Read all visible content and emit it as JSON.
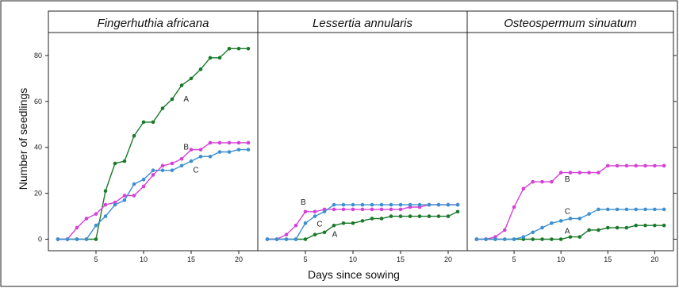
{
  "chart_data": {
    "type": "line",
    "xlabel": "Days since sowing",
    "ylabel": "Number of seedlings",
    "xlim": [
      0,
      22
    ],
    "ylim": [
      -5,
      90
    ],
    "x_ticks": [
      5,
      10,
      15,
      20
    ],
    "y_ticks": [
      0,
      20,
      40,
      60,
      80
    ],
    "grid": false,
    "legend": "none (series labelled A, B, C directly on the lines)",
    "colors": {
      "A": "#1a7a2a",
      "B": "#d640d6",
      "C": "#3d8fd0"
    },
    "panels": [
      {
        "title": "Fingerhuthia africana",
        "series": [
          {
            "name": "A",
            "x": [
              1,
              2,
              3,
              4,
              5,
              6,
              7,
              8,
              9,
              10,
              11,
              12,
              13,
              14,
              15,
              16,
              17,
              18,
              19,
              20,
              21
            ],
            "y": [
              0,
              0,
              0,
              0,
              0,
              21,
              33,
              34,
              45,
              51,
              51,
              57,
              61,
              67,
              70,
              74,
              79,
              79,
              83,
              83,
              83
            ]
          },
          {
            "name": "B",
            "x": [
              1,
              2,
              3,
              4,
              5,
              6,
              7,
              8,
              9,
              10,
              11,
              12,
              13,
              14,
              15,
              16,
              17,
              18,
              19,
              20,
              21
            ],
            "y": [
              0,
              0,
              5,
              9,
              11,
              15,
              16,
              19,
              19,
              23,
              28,
              32,
              33,
              35,
              39,
              39,
              42,
              42,
              42,
              42,
              42
            ]
          },
          {
            "name": "C",
            "x": [
              1,
              2,
              3,
              4,
              5,
              6,
              7,
              8,
              9,
              10,
              11,
              12,
              13,
              14,
              15,
              16,
              17,
              18,
              19,
              20,
              21
            ],
            "y": [
              0,
              0,
              0,
              0,
              6,
              10,
              15,
              17,
              24,
              26,
              30,
              30,
              30,
              32,
              34,
              36,
              36,
              38,
              38,
              39,
              39
            ]
          }
        ],
        "labels": [
          {
            "text": "A",
            "x": 14.2,
            "y": 60
          },
          {
            "text": "B",
            "x": 14.2,
            "y": 39
          },
          {
            "text": "C",
            "x": 15.2,
            "y": 29
          }
        ]
      },
      {
        "title": "Lessertia annularis",
        "series": [
          {
            "name": "A",
            "x": [
              1,
              2,
              3,
              4,
              5,
              6,
              7,
              8,
              9,
              10,
              11,
              12,
              13,
              14,
              15,
              16,
              17,
              18,
              19,
              20,
              21
            ],
            "y": [
              0,
              0,
              0,
              0,
              0,
              2,
              3,
              6,
              7,
              7,
              8,
              9,
              9,
              10,
              10,
              10,
              10,
              10,
              10,
              10,
              12
            ]
          },
          {
            "name": "B",
            "x": [
              1,
              2,
              3,
              4,
              5,
              6,
              7,
              8,
              9,
              10,
              11,
              12,
              13,
              14,
              15,
              16,
              17,
              18,
              19,
              20,
              21
            ],
            "y": [
              0,
              0,
              2,
              6,
              12,
              12,
              13,
              13,
              13,
              13,
              13,
              13,
              13,
              13,
              13,
              14,
              14,
              15,
              15,
              15,
              15
            ]
          },
          {
            "name": "C",
            "x": [
              1,
              2,
              3,
              4,
              5,
              6,
              7,
              8,
              9,
              10,
              11,
              12,
              13,
              14,
              15,
              16,
              17,
              18,
              19,
              20,
              21
            ],
            "y": [
              0,
              0,
              0,
              0,
              7,
              10,
              12,
              15,
              15,
              15,
              15,
              15,
              15,
              15,
              15,
              15,
              15,
              15,
              15,
              15,
              15
            ]
          }
        ],
        "labels": [
          {
            "text": "A",
            "x": 7.8,
            "y": 1
          },
          {
            "text": "B",
            "x": 4.5,
            "y": 15
          },
          {
            "text": "C",
            "x": 6.2,
            "y": 5.5
          }
        ]
      },
      {
        "title": "Osteospermum sinuatum",
        "series": [
          {
            "name": "A",
            "x": [
              1,
              2,
              3,
              4,
              5,
              6,
              7,
              8,
              9,
              10,
              11,
              12,
              13,
              14,
              15,
              16,
              17,
              18,
              19,
              20,
              21
            ],
            "y": [
              0,
              0,
              0,
              0,
              0,
              0,
              0,
              0,
              0,
              0,
              1,
              1,
              4,
              4,
              5,
              5,
              5,
              6,
              6,
              6,
              6
            ]
          },
          {
            "name": "B",
            "x": [
              1,
              2,
              3,
              4,
              5,
              6,
              7,
              8,
              9,
              10,
              11,
              12,
              13,
              14,
              15,
              16,
              17,
              18,
              19,
              20,
              21
            ],
            "y": [
              0,
              0,
              1,
              4,
              14,
              22,
              25,
              25,
              25,
              29,
              29,
              29,
              29,
              29,
              32,
              32,
              32,
              32,
              32,
              32,
              32
            ]
          },
          {
            "name": "C",
            "x": [
              1,
              2,
              3,
              4,
              5,
              6,
              7,
              8,
              9,
              10,
              11,
              12,
              13,
              14,
              15,
              16,
              17,
              18,
              19,
              20,
              21
            ],
            "y": [
              0,
              0,
              0,
              0,
              0,
              1,
              3,
              5,
              7,
              8,
              9,
              9,
              11,
              13,
              13,
              13,
              13,
              13,
              13,
              13,
              13
            ]
          }
        ],
        "labels": [
          {
            "text": "A",
            "x": 10.4,
            "y": 2.5
          },
          {
            "text": "B",
            "x": 10.4,
            "y": 25
          },
          {
            "text": "C",
            "x": 10.4,
            "y": 11
          }
        ]
      }
    ]
  }
}
